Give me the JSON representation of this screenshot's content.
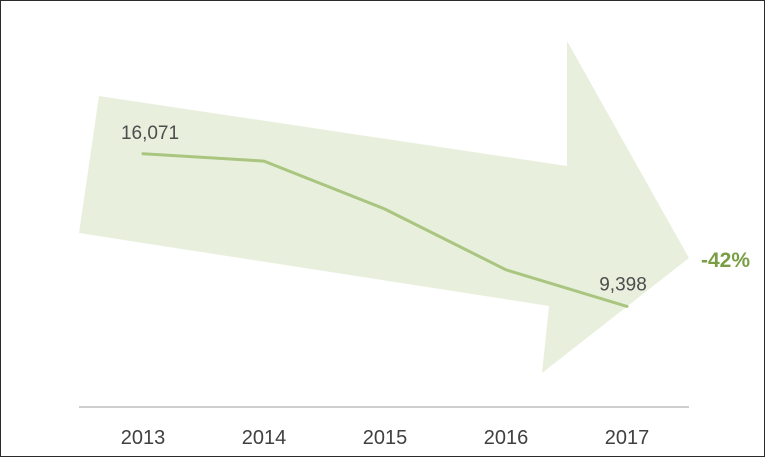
{
  "chart_data": {
    "type": "line",
    "x": [
      "2013",
      "2014",
      "2015",
      "2016",
      "2017"
    ],
    "series": [
      {
        "values": [
          16071,
          15750,
          13650,
          11000,
          9398
        ]
      }
    ],
    "data_labels": [
      {
        "x": "2013",
        "text": "16,071"
      },
      {
        "x": "2017",
        "text": "9,398"
      }
    ],
    "change_annotation": "-42%",
    "ylim": [
      5000,
      21000
    ],
    "grid": false,
    "legend": "none",
    "colors": {
      "line": "#a9c57f",
      "arrow_fill": "#e8f0dd",
      "change_text": "#7a9e45",
      "axis": "#bfbfbf"
    }
  }
}
